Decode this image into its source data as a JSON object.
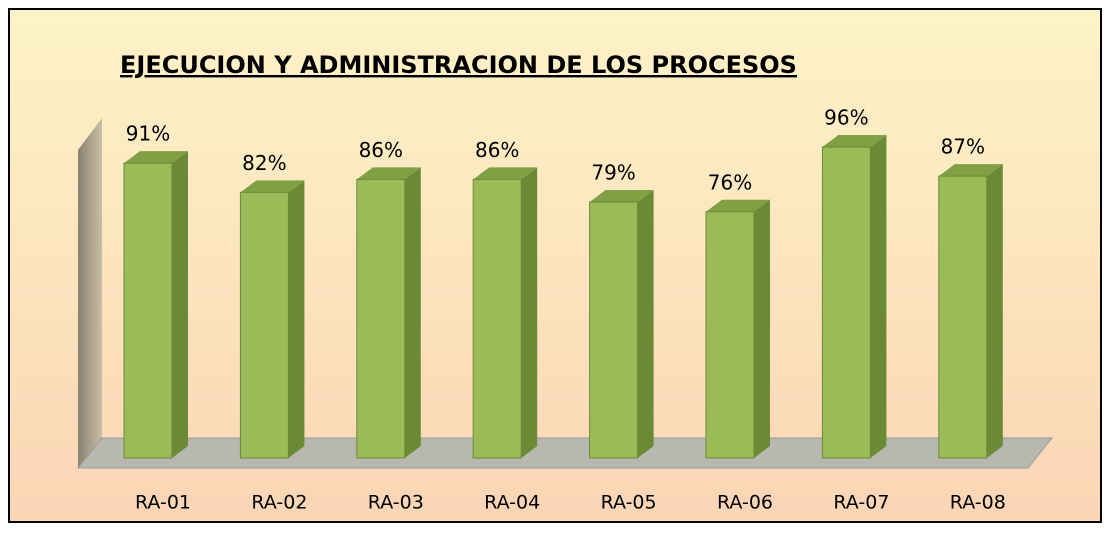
{
  "chart_data": {
    "type": "bar3d",
    "title": "EJECUCION Y ADMINISTRACION DE LOS PROCESOS",
    "categories": [
      "RA-01",
      "RA-02",
      "RA-03",
      "RA-04",
      "RA-05",
      "RA-06",
      "RA-07",
      "RA-08"
    ],
    "values": [
      91,
      82,
      86,
      86,
      79,
      76,
      96,
      87
    ],
    "value_labels": [
      "91%",
      "82%",
      "86%",
      "86%",
      "79%",
      "76%",
      "96%",
      "87%"
    ],
    "color": "#9bbb59"
  }
}
